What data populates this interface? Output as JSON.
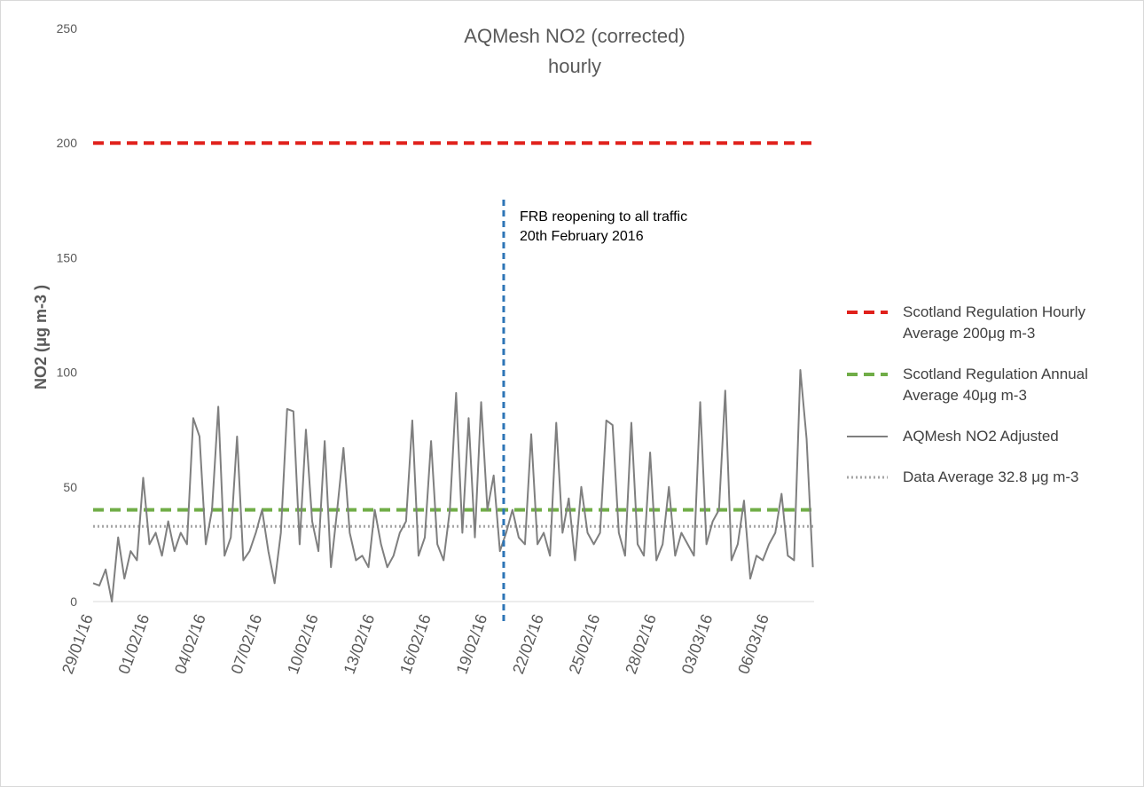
{
  "chart_data": {
    "type": "line",
    "title": "AQMesh NO2 (corrected)",
    "subtitle": "hourly",
    "y_label": "NO2 (μg m-3 )",
    "ylim": [
      0,
      250
    ],
    "yticks": [
      0,
      50,
      100,
      150,
      200,
      250
    ],
    "categories": [
      "29/01/16",
      null,
      null,
      null,
      null,
      null,
      null,
      null,
      null,
      "01/02/16",
      null,
      null,
      null,
      null,
      null,
      null,
      null,
      null,
      "04/02/16",
      null,
      null,
      null,
      null,
      null,
      null,
      null,
      null,
      "07/02/16",
      null,
      null,
      null,
      null,
      null,
      null,
      null,
      null,
      "10/02/16",
      null,
      null,
      null,
      null,
      null,
      null,
      null,
      null,
      "13/02/16",
      null,
      null,
      null,
      null,
      null,
      null,
      null,
      null,
      "16/02/16",
      null,
      null,
      null,
      null,
      null,
      null,
      null,
      null,
      "19/02/16",
      null,
      null,
      null,
      null,
      null,
      null,
      null,
      null,
      "22/02/16",
      null,
      null,
      null,
      null,
      null,
      null,
      null,
      null,
      "25/02/16",
      null,
      null,
      null,
      null,
      null,
      null,
      null,
      null,
      "28/02/16",
      null,
      null,
      null,
      null,
      null,
      null,
      null,
      null,
      "03/03/16",
      null,
      null,
      null,
      null,
      null,
      null,
      null,
      null,
      "06/03/16",
      null,
      null,
      null,
      null,
      null,
      null,
      null
    ],
    "series": [
      {
        "name": "AQMesh NO2 Adjusted",
        "color": "#7f7f7f",
        "values": [
          8,
          7,
          14,
          0,
          28,
          10,
          22,
          18,
          54,
          25,
          30,
          20,
          35,
          22,
          30,
          25,
          80,
          72,
          25,
          40,
          85,
          20,
          28,
          72,
          18,
          22,
          30,
          40,
          22,
          8,
          30,
          84,
          83,
          25,
          75,
          35,
          22,
          70,
          15,
          40,
          67,
          30,
          18,
          20,
          15,
          40,
          25,
          15,
          20,
          30,
          35,
          79,
          20,
          28,
          70,
          25,
          18,
          40,
          91,
          30,
          80,
          28,
          87,
          40,
          55,
          22,
          30,
          40,
          28,
          25,
          73,
          25,
          30,
          20,
          78,
          30,
          45,
          18,
          50,
          30,
          25,
          30,
          79,
          77,
          30,
          20,
          78,
          25,
          20,
          65,
          18,
          25,
          50,
          20,
          30,
          25,
          20,
          87,
          25,
          35,
          40,
          92,
          18,
          25,
          44,
          10,
          20,
          18,
          25,
          30,
          47,
          20,
          18,
          101,
          71,
          15
        ]
      }
    ],
    "reference_lines": [
      {
        "name": "Scotland Regulation Hourly Average 200μg m-3",
        "value": 200,
        "color": "#e0201b",
        "style": "dashed"
      },
      {
        "name": "Scotland Regulation Annual Average 40μg m-3",
        "value": 40,
        "color": "#70ad47",
        "style": "dashed"
      },
      {
        "name": "Data Average 32.8 μg m-3",
        "value": 32.8,
        "color": "#a6a6a6",
        "style": "dotted"
      }
    ],
    "legend_order": [
      "reference_lines.0",
      "reference_lines.1",
      "series.0",
      "reference_lines.2"
    ],
    "event": {
      "x": 65.6,
      "color": "#2e75b6",
      "lines": [
        "FRB reopening to all traffic",
        "20th February 2016"
      ]
    }
  }
}
